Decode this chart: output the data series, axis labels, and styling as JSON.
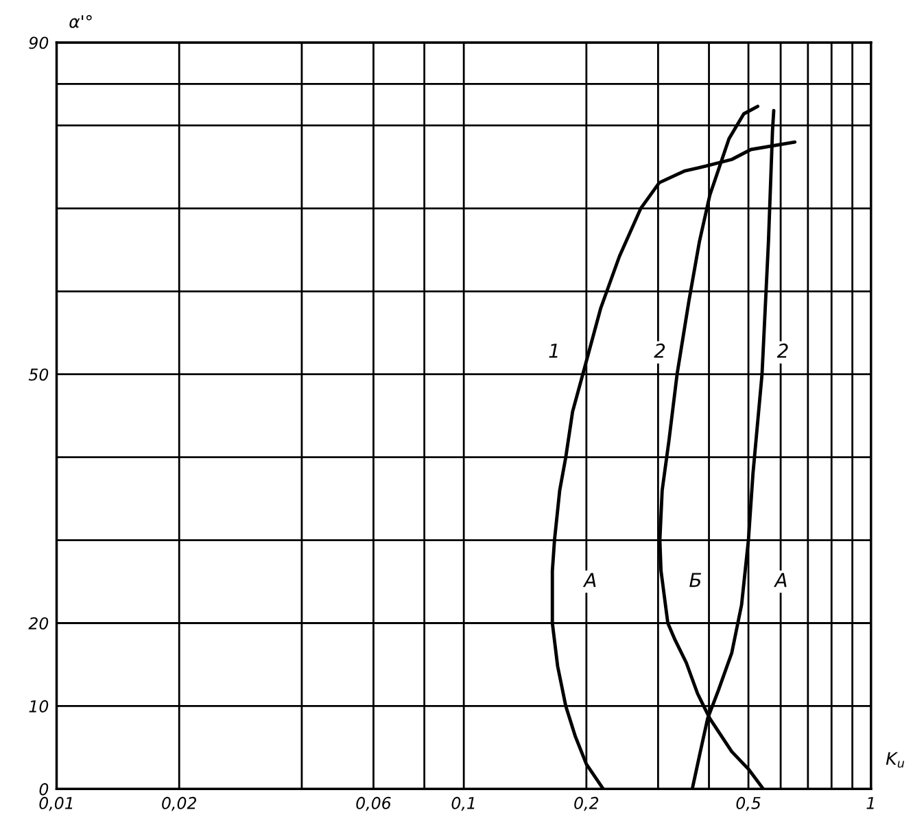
{
  "chart_data": {
    "type": "line",
    "xlabel": "K$_{u}$",
    "ylabel": "α'°",
    "xlim": [
      0.01,
      1
    ],
    "ylim": [
      0,
      90
    ],
    "xticks": [
      {
        "value": 0.01,
        "label": "0,01"
      },
      {
        "value": 0.02,
        "label": "0,02"
      },
      {
        "value": 0.04,
        "label": null
      },
      {
        "value": 0.06,
        "label": "0,06"
      },
      {
        "value": 0.08,
        "label": null
      },
      {
        "value": 0.1,
        "label": "0,1"
      },
      {
        "value": 0.2,
        "label": "0,2"
      },
      {
        "value": 0.3,
        "label": null
      },
      {
        "value": 0.4,
        "label": null
      },
      {
        "value": 0.5,
        "label": "0,5"
      },
      {
        "value": 0.6,
        "label": null
      },
      {
        "value": 0.7,
        "label": null
      },
      {
        "value": 0.8,
        "label": null
      },
      {
        "value": 0.9,
        "label": null
      },
      {
        "value": 1,
        "label": "1"
      }
    ],
    "yticks": [
      0,
      10,
      20,
      {
        "value": 30,
        "label": null
      },
      {
        "value": 40,
        "label": null
      },
      50,
      {
        "value": 60,
        "label": null
      },
      {
        "value": 70,
        "label": null
      },
      {
        "value": 80,
        "label": null
      },
      {
        "value": 85,
        "label": null
      },
      90
    ],
    "log": "x",
    "grid": true,
    "marker": "none",
    "line_style": "solid",
    "series": [
      {
        "color": "#000000",
        "x": [
          0.22,
          0.2,
          0.188,
          0.178,
          0.17,
          0.165,
          0.165,
          0.167,
          0.172,
          0.178,
          0.185,
          0.196,
          0.217,
          0.241,
          0.272,
          0.302,
          0.348,
          0.393,
          0.455,
          0.507,
          0.65
        ],
        "values": [
          0,
          3,
          6.3,
          10,
          14.8,
          20,
          26.3,
          30,
          36,
          40,
          45.5,
          50,
          58,
          64.2,
          70,
          73.1,
          74.5,
          75.1,
          75.9,
          77.1,
          78
        ]
      },
      {
        "color": "#000000",
        "x": [
          0.544,
          0.5,
          0.455,
          0.402,
          0.375,
          0.352,
          0.33,
          0.317,
          0.305,
          0.303,
          0.307,
          0.319,
          0.334,
          0.357,
          0.379,
          0.402,
          0.448,
          0.487,
          0.527
        ],
        "values": [
          0,
          2.4,
          4.5,
          8.5,
          11.5,
          15.2,
          18,
          20,
          26.3,
          30,
          36,
          42,
          50,
          58.8,
          66,
          71.6,
          78.4,
          81.4,
          82.3
        ]
      },
      {
        "color": "#000000",
        "x": [
          0.364,
          0.379,
          0.397,
          0.422,
          0.455,
          0.481,
          0.5,
          0.513,
          0.527,
          0.54,
          0.56,
          0.573,
          0.577
        ],
        "values": [
          0,
          4,
          8.5,
          11.9,
          16.4,
          22.2,
          30,
          38,
          44.3,
          50,
          66,
          79.4,
          81.8
        ]
      }
    ],
    "annotations": [
      {
        "text": "1",
        "x": 0.196,
        "y": 50
      },
      {
        "text": "2",
        "x": 0.334,
        "y": 50
      },
      {
        "text": "2",
        "x": 0.54,
        "y": 50
      },
      {
        "text": "А",
        "x": 0.165,
        "y": 25
      },
      {
        "text": "Б",
        "x": 0.307,
        "y": 25
      },
      {
        "text": "А",
        "x": 0.488,
        "y": 25
      }
    ]
  }
}
